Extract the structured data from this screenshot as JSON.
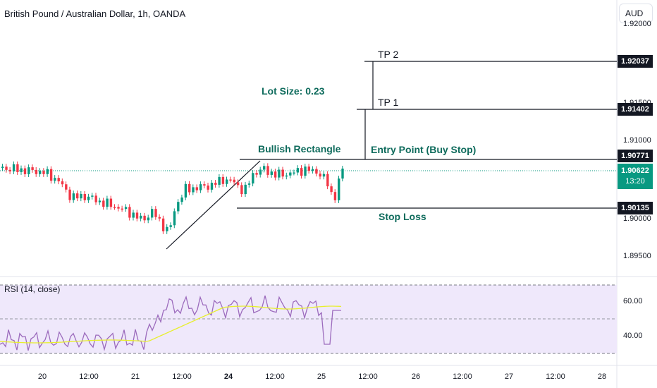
{
  "header": {
    "symbol_title": "British Pound / Australian Dollar, 1h, OANDA",
    "currency_button": "AUD"
  },
  "price_axis": {
    "labels": [
      "1.91500",
      "1.91000",
      "1.90000",
      "1.89500"
    ],
    "top_cut_label": "1.92000"
  },
  "price_tags": {
    "tp2": "1.92037",
    "tp1": "1.91402",
    "entry": "1.90771",
    "stop": "1.90135",
    "current_price": "1.90622",
    "countdown": "13:20"
  },
  "annotations": {
    "lot_size": "Lot Size: 0.23",
    "tp2": "TP 2",
    "tp1": "TP 1",
    "pattern": "Bullish Rectangle",
    "entry": "Entry Point (Buy Stop)",
    "stop": "Stop Loss"
  },
  "rsi": {
    "label": "RSI (14, close)",
    "axis": [
      "60.00",
      "40.00"
    ]
  },
  "time_axis": {
    "labels": [
      "20",
      "12:00",
      "21",
      "12:00",
      "24",
      "12:00",
      "25",
      "12:00",
      "26",
      "12:00",
      "27",
      "12:00",
      "28"
    ]
  },
  "colors": {
    "bull": "#089981",
    "bear": "#f23645",
    "rsi_line": "#9c6bbd",
    "rsi_ma": "#e7ef2c",
    "rsi_band": "#efe8fb",
    "annotation": "#0e6b5c"
  }
}
